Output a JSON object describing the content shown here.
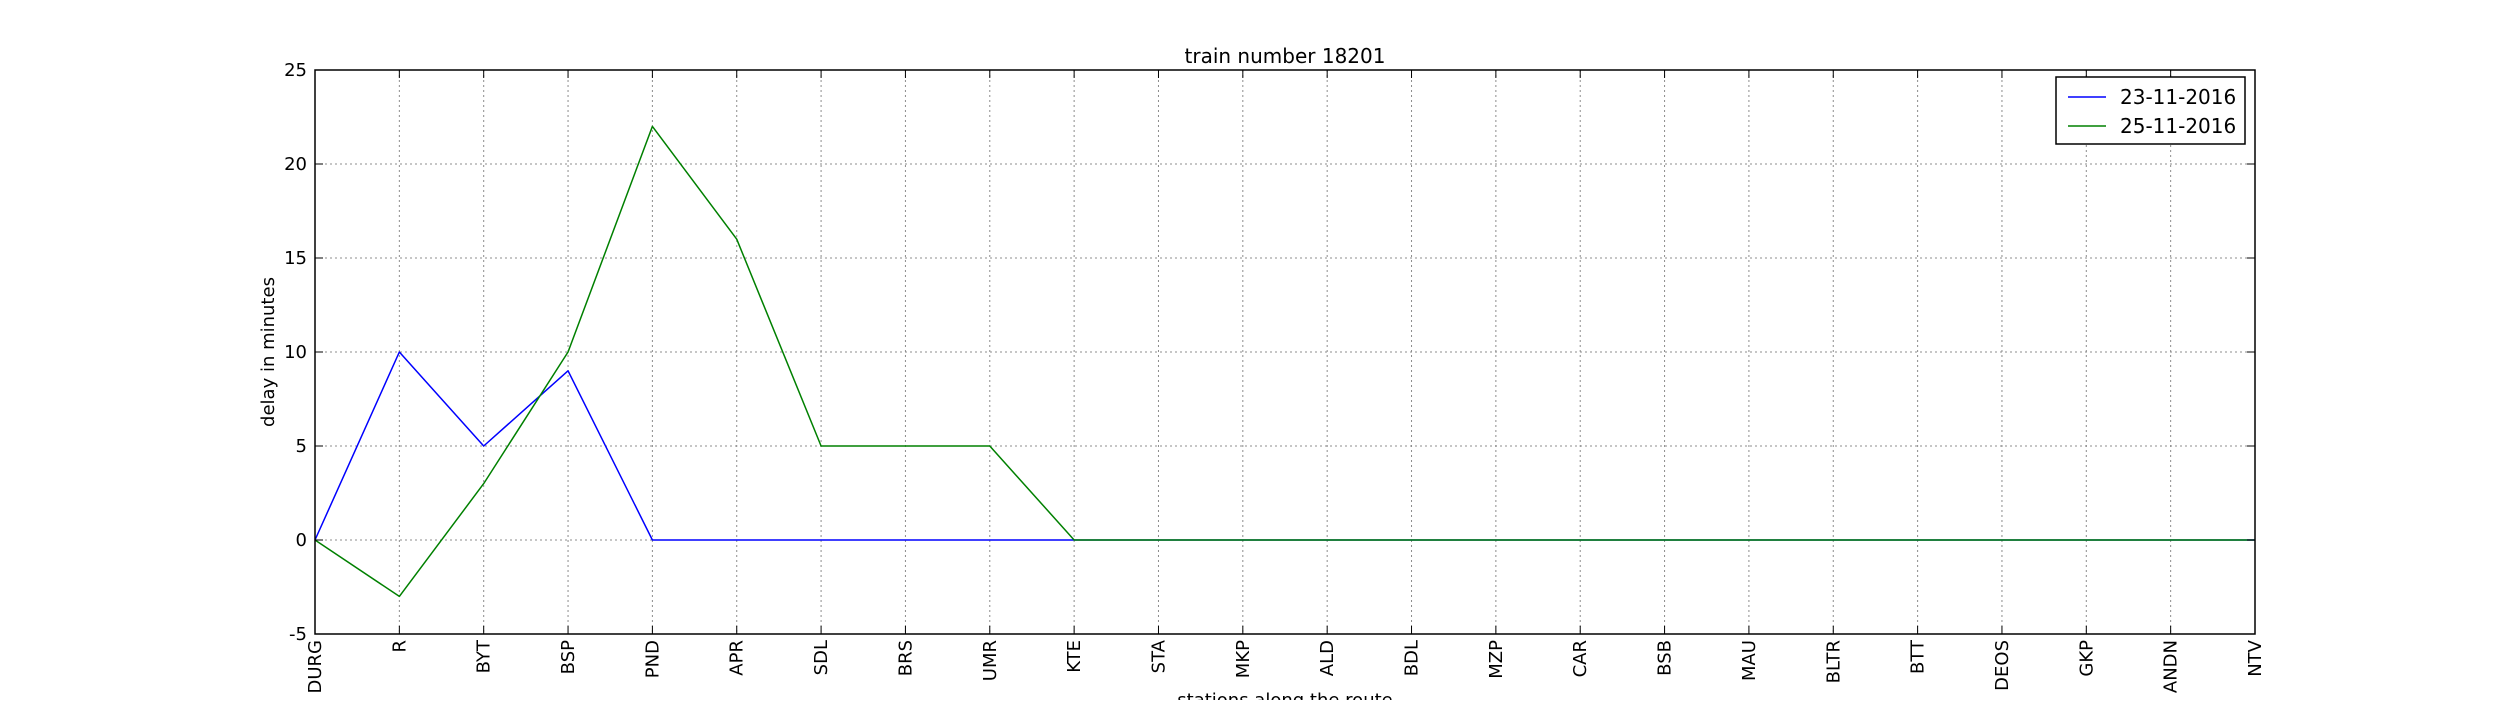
{
  "chart_data": {
    "type": "line",
    "title": "train number 18201",
    "xlabel": "stations along the route",
    "ylabel": "delay in minutes",
    "ylim": [
      -5,
      25
    ],
    "yticks": [
      -5,
      0,
      5,
      10,
      15,
      20,
      25
    ],
    "grid": true,
    "legend_position": "top-right",
    "categories": [
      "DURG",
      "R",
      "BYT",
      "BSP",
      "PND",
      "APR",
      "SDL",
      "BRS",
      "UMR",
      "KTE",
      "STA",
      "MKP",
      "ALD",
      "BDL",
      "MZP",
      "CAR",
      "BSB",
      "MAU",
      "BLTR",
      "BTT",
      "DEOS",
      "GKP",
      "ANDN",
      "NTV"
    ],
    "series": [
      {
        "name": "23-11-2016",
        "color": "#0000ff",
        "values": [
          0,
          10,
          5,
          9,
          0,
          0,
          0,
          0,
          0,
          0,
          0,
          0,
          0,
          0,
          0,
          0,
          0,
          0,
          0,
          0,
          0,
          0,
          0,
          0
        ]
      },
      {
        "name": "25-11-2016",
        "color": "#008000",
        "values": [
          0,
          -3,
          3,
          10,
          22,
          16,
          5,
          5,
          5,
          0,
          0,
          0,
          0,
          0,
          0,
          0,
          0,
          0,
          0,
          0,
          0,
          0,
          0,
          0
        ]
      }
    ]
  }
}
